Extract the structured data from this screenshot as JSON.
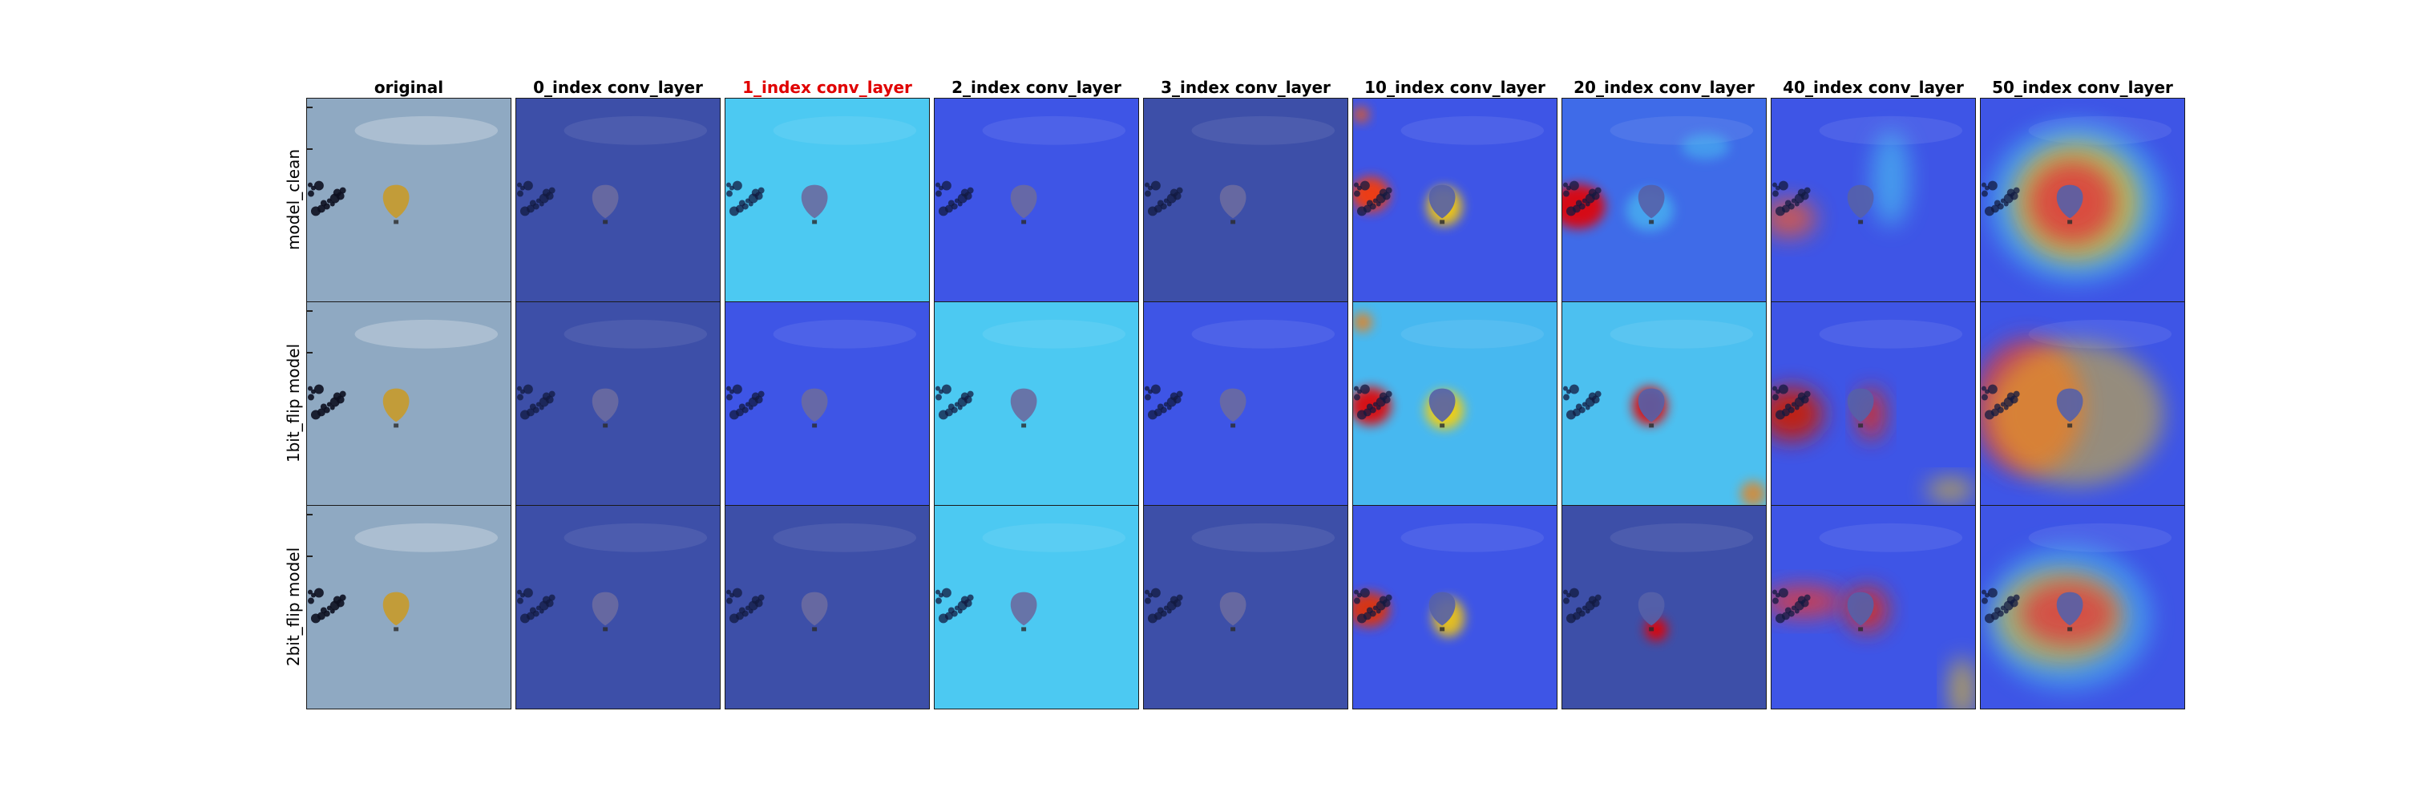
{
  "columns": [
    {
      "title": "original",
      "highlight": false
    },
    {
      "title": "0_index conv_layer",
      "highlight": false
    },
    {
      "title": "1_index conv_layer",
      "highlight": true
    },
    {
      "title": "2_index conv_layer",
      "highlight": false
    },
    {
      "title": "3_index conv_layer",
      "highlight": false
    },
    {
      "title": "10_index conv_layer",
      "highlight": false
    },
    {
      "title": "20_index conv_layer",
      "highlight": false
    },
    {
      "title": "40_index conv_layer",
      "highlight": false
    },
    {
      "title": "50_index conv_layer",
      "highlight": false
    }
  ],
  "rows": [
    {
      "label": "model_clean"
    },
    {
      "label": "1bit_flip model"
    },
    {
      "label": "2bit_flip model"
    }
  ],
  "colors": {
    "highlight_title": "#e00000",
    "normal_title": "#000000",
    "sky_original": "#8fa9c2",
    "dark_blue": "#3d4fa8",
    "mid_blue": "#3e55e6",
    "cyan": "#4cc9f2"
  }
}
